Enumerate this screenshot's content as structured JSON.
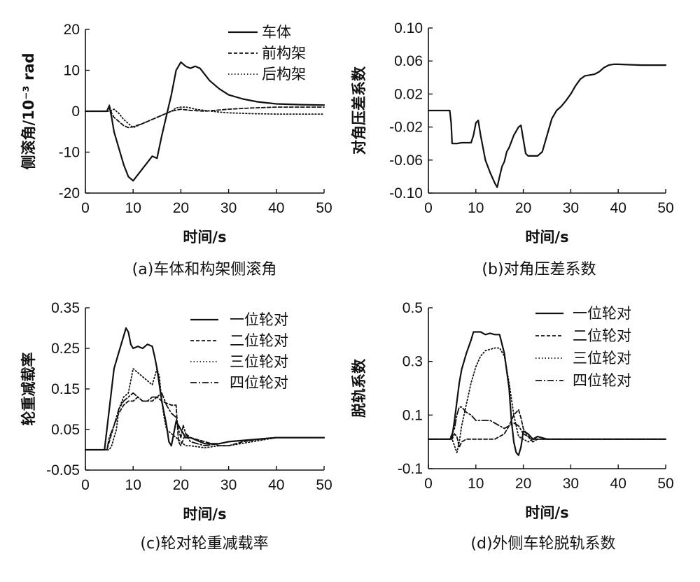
{
  "chart_data": [
    {
      "type": "line",
      "caption": "(a)车体和构架侧滚角",
      "xlabel": "时间/s",
      "ylabel": "侧滚角/10⁻³ rad",
      "xlim": [
        0,
        50
      ],
      "ylim": [
        -20,
        20
      ],
      "xticks": [
        "0",
        "10",
        "20",
        "30",
        "40",
        "50"
      ],
      "yticks": [
        "-20",
        "-10",
        "0",
        "10",
        "20"
      ],
      "legend_position": "top-right",
      "series": [
        {
          "name": "车体",
          "style": "solid",
          "x": [
            0,
            4.5,
            5,
            5.5,
            6,
            7,
            8,
            9,
            10,
            11,
            12,
            13,
            14,
            15,
            16,
            17,
            18,
            19,
            20,
            21,
            22,
            23,
            24,
            25,
            26,
            28,
            30,
            33,
            36,
            40,
            45,
            50
          ],
          "y": [
            0,
            0,
            1.2,
            -1.5,
            -5,
            -9,
            -13,
            -16,
            -17,
            -15.5,
            -14,
            -12.5,
            -11,
            -11.5,
            -6,
            -1,
            4,
            10,
            12,
            11,
            10.5,
            11,
            10.5,
            9,
            7.5,
            5.5,
            4,
            3,
            2.3,
            1.8,
            1.6,
            1.5
          ]
        },
        {
          "name": "前构架",
          "style": "dashed",
          "x": [
            0,
            4.5,
            5,
            5.5,
            6,
            7,
            8,
            9,
            10,
            12,
            14,
            16,
            18,
            20,
            22,
            25,
            30,
            35,
            40,
            45,
            50
          ],
          "y": [
            0,
            0,
            1.5,
            -0.5,
            -1.5,
            -2.5,
            -3.5,
            -4,
            -3.8,
            -3,
            -2,
            -1,
            0,
            0.5,
            0.2,
            0,
            0.5,
            0.8,
            1,
            1,
            1
          ]
        },
        {
          "name": "后构架",
          "style": "dotted",
          "x": [
            0,
            5,
            6,
            7,
            8,
            9,
            10,
            11,
            12,
            13,
            14,
            15,
            16,
            17,
            18,
            19,
            20,
            21,
            22,
            23,
            25,
            28,
            30,
            35,
            40,
            45,
            50
          ],
          "y": [
            0,
            0,
            0.5,
            -0.5,
            -2,
            -3,
            -4,
            -3.5,
            -3,
            -2.5,
            -2,
            -1.5,
            -1,
            -0.5,
            0,
            0.8,
            1,
            1,
            0.8,
            0.5,
            0.2,
            -0.2,
            -0.4,
            -0.6,
            -0.7,
            -0.7,
            -0.7
          ]
        }
      ]
    },
    {
      "type": "line",
      "caption": "(b)对角压差系数",
      "xlabel": "时间/s",
      "ylabel": "对角压差系数",
      "xlim": [
        0,
        50
      ],
      "ylim": [
        -0.1,
        0.1
      ],
      "xticks": [
        "0",
        "10",
        "20",
        "30",
        "40",
        "50"
      ],
      "yticks": [
        "0.10",
        "0.06",
        "0.02",
        "-0.02",
        "-0.06",
        "-0.10"
      ],
      "series": [
        {
          "name": "",
          "style": "solid",
          "x": [
            0,
            4.5,
            4.8,
            5,
            6,
            7,
            8,
            9,
            9.5,
            10,
            10.5,
            11,
            11.5,
            12,
            13,
            14,
            14.5,
            15,
            15.5,
            16,
            16.5,
            17,
            18,
            19,
            19.5,
            20,
            20.5,
            21,
            22,
            23,
            24,
            25,
            26,
            27,
            28,
            29,
            30,
            31,
            32,
            33,
            34,
            35,
            36,
            37,
            38,
            39,
            40,
            45,
            50
          ],
          "y": [
            0,
            0,
            -0.015,
            -0.04,
            -0.04,
            -0.039,
            -0.039,
            -0.039,
            -0.03,
            -0.015,
            -0.012,
            -0.03,
            -0.045,
            -0.06,
            -0.075,
            -0.088,
            -0.093,
            -0.08,
            -0.068,
            -0.062,
            -0.05,
            -0.045,
            -0.03,
            -0.02,
            -0.018,
            -0.035,
            -0.052,
            -0.055,
            -0.055,
            -0.055,
            -0.05,
            -0.03,
            -0.01,
            0,
            0.005,
            0.012,
            0.02,
            0.03,
            0.038,
            0.042,
            0.043,
            0.044,
            0.047,
            0.052,
            0.055,
            0.056,
            0.056,
            0.055,
            0.055
          ]
        }
      ]
    },
    {
      "type": "line",
      "caption": "(c)轮对轮重减载率",
      "xlabel": "时间/s",
      "ylabel": "轮重减载率",
      "xlim": [
        0,
        50
      ],
      "ylim": [
        -0.05,
        0.35
      ],
      "xticks": [
        "0",
        "10",
        "20",
        "30",
        "40",
        "50"
      ],
      "yticks": [
        "0.35",
        "0.25",
        "0.15",
        "0.05",
        "-0.05"
      ],
      "legend_position": "top-right",
      "series": [
        {
          "name": "一位轮对",
          "style": "solid",
          "x": [
            0,
            4,
            4.5,
            5,
            5.5,
            6,
            7,
            8,
            8.5,
            9,
            9.5,
            10,
            11,
            12,
            13,
            14,
            14.5,
            15,
            15.5,
            16,
            17,
            17.5,
            18,
            18.5,
            19,
            20,
            21,
            22,
            23,
            25,
            28,
            30,
            35,
            40,
            45,
            50
          ],
          "y": [
            0,
            0,
            0.05,
            0.1,
            0.15,
            0.2,
            0.24,
            0.28,
            0.3,
            0.29,
            0.26,
            0.25,
            0.255,
            0.25,
            0.26,
            0.255,
            0.23,
            0.2,
            0.16,
            0.12,
            0.06,
            0.02,
            0.01,
            0.04,
            0.07,
            0.05,
            0.03,
            0.03,
            0.025,
            0.015,
            0.015,
            0.02,
            0.025,
            0.03,
            0.03,
            0.03
          ]
        },
        {
          "name": "二位轮对",
          "style": "dashed",
          "x": [
            0,
            4.5,
            5,
            6,
            7,
            8,
            9,
            10,
            11,
            12,
            13,
            14,
            15,
            16,
            17,
            18,
            19,
            19.5,
            20,
            21,
            22,
            25,
            28,
            30,
            33,
            36,
            40,
            45,
            50
          ],
          "y": [
            0,
            0,
            0.02,
            0.06,
            0.09,
            0.11,
            0.12,
            0.12,
            0.13,
            0.12,
            0.12,
            0.12,
            0.13,
            0.12,
            0.115,
            0.11,
            0.11,
            0.02,
            0.01,
            0.04,
            0.03,
            0.02,
            0.01,
            0.01,
            0.02,
            0.025,
            0.03,
            0.03,
            0.03
          ]
        },
        {
          "name": "三位轮对",
          "style": "dotted",
          "x": [
            0,
            5,
            5.5,
            6,
            6.5,
            7,
            8,
            9,
            10,
            11,
            12,
            13,
            14,
            15,
            15.5,
            16,
            16.5,
            17,
            18,
            19,
            20,
            21,
            22,
            25,
            28,
            30,
            35,
            40,
            45,
            50
          ],
          "y": [
            0,
            0,
            0.01,
            0.03,
            0.05,
            0.1,
            0.13,
            0.14,
            0.2,
            0.19,
            0.18,
            0.17,
            0.16,
            0.2,
            0.18,
            0.12,
            0.08,
            0.05,
            0.04,
            0.03,
            0.02,
            0.01,
            0.01,
            0.005,
            0.01,
            0.01,
            0.02,
            0.03,
            0.03,
            0.03
          ]
        },
        {
          "name": "四位轮对",
          "style": "dashdot",
          "x": [
            0,
            4.5,
            5,
            6,
            7,
            8,
            9,
            10,
            11,
            12,
            13,
            14,
            15,
            16,
            17,
            18,
            19,
            19.5,
            20,
            20.5,
            21,
            22,
            25,
            28,
            30,
            35,
            40,
            45,
            50
          ],
          "y": [
            0,
            0,
            0.03,
            0.06,
            0.1,
            0.12,
            0.13,
            0.14,
            0.13,
            0.12,
            0.12,
            0.13,
            0.13,
            0.14,
            0.11,
            0.09,
            0.08,
            0.05,
            0.03,
            0.06,
            0.04,
            0.02,
            0.01,
            0.015,
            0.02,
            0.025,
            0.03,
            0.03,
            0.03
          ]
        }
      ]
    },
    {
      "type": "line",
      "caption": "(d)外侧车轮脱轨系数",
      "xlabel": "时间/s",
      "ylabel": "脱轨系数",
      "xlim": [
        0,
        50
      ],
      "ylim": [
        -0.1,
        0.5
      ],
      "xticks": [
        "0",
        "10",
        "20",
        "30",
        "40",
        "50"
      ],
      "yticks": [
        "0.5",
        "0.3",
        "0.1",
        "-0.1"
      ],
      "legend_position": "top-right",
      "series": [
        {
          "name": "一位轮对",
          "style": "solid",
          "x": [
            0,
            4.5,
            5,
            5.5,
            6,
            6.5,
            7,
            8,
            9,
            9.5,
            10,
            11,
            12,
            13,
            14,
            15,
            16,
            17,
            17.5,
            18,
            18.5,
            19,
            19.5,
            20,
            21,
            22,
            23,
            25,
            30,
            40,
            50
          ],
          "y": [
            0.01,
            0.01,
            0.02,
            0.08,
            0.15,
            0.22,
            0.27,
            0.33,
            0.38,
            0.41,
            0.41,
            0.41,
            0.4,
            0.405,
            0.4,
            0.4,
            0.33,
            0.2,
            0.08,
            0,
            -0.04,
            -0.05,
            -0.02,
            0.04,
            0.03,
            0.01,
            0.02,
            0.01,
            0.01,
            0.01,
            0.01
          ]
        },
        {
          "name": "二位轮对",
          "style": "dashed",
          "x": [
            0,
            5,
            5.5,
            6,
            6.5,
            7,
            8,
            9,
            10,
            12,
            14,
            15,
            16,
            17,
            18,
            19,
            19.5,
            20,
            21,
            22,
            23,
            25,
            30,
            40,
            50
          ],
          "y": [
            0.01,
            0.01,
            0.03,
            0.02,
            -0.02,
            0.0,
            0.01,
            0.01,
            0.01,
            0.01,
            0.01,
            0.02,
            0.03,
            0.06,
            0.1,
            0.12,
            0.09,
            0.05,
            0.02,
            0.0,
            0.01,
            0.01,
            0.01,
            0.01,
            0.01
          ]
        },
        {
          "name": "三位轮对",
          "style": "dotted",
          "x": [
            0,
            5,
            6,
            6.5,
            7,
            8,
            9,
            10,
            11,
            12,
            13,
            14,
            15,
            16,
            17,
            18,
            19,
            20,
            21,
            22,
            25,
            30,
            40,
            50
          ],
          "y": [
            0.01,
            0.01,
            -0.04,
            0.0,
            0.06,
            0.14,
            0.22,
            0.28,
            0.32,
            0.34,
            0.345,
            0.35,
            0.35,
            0.32,
            0.22,
            0.1,
            0.02,
            0.01,
            0.0,
            0.01,
            0.01,
            0.01,
            0.01,
            0.01
          ]
        },
        {
          "name": "四位轮对",
          "style": "dashdot",
          "x": [
            0,
            4.5,
            5,
            5.5,
            6,
            6.5,
            7,
            8,
            9,
            10,
            11,
            12,
            13,
            14,
            15,
            16,
            17,
            18,
            19,
            20,
            21,
            22,
            25,
            30,
            40,
            50
          ],
          "y": [
            0.01,
            0.01,
            0.03,
            0.05,
            0.1,
            0.13,
            0.13,
            0.11,
            0.1,
            0.08,
            0.08,
            0.08,
            0.08,
            0.07,
            0.06,
            0.05,
            0.06,
            0.07,
            0.06,
            0.03,
            0.02,
            0.01,
            0.01,
            0.01,
            0.01,
            0.01
          ]
        }
      ]
    }
  ]
}
